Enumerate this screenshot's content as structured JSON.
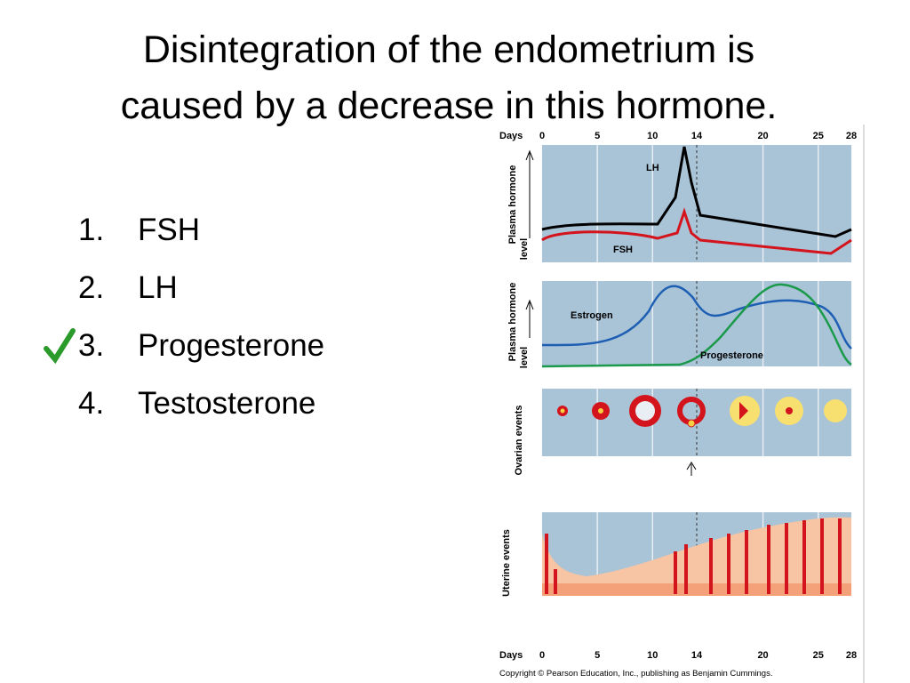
{
  "title": [
    "Disintegration of the endometrium is",
    "caused by a decrease in this hormone."
  ],
  "items": [
    {
      "number": "1.",
      "text": "FSH"
    },
    {
      "number": "2.",
      "text": "LH"
    },
    {
      "number": "3.",
      "text": "Progesterone",
      "checked": true
    },
    {
      "number": "4.",
      "text": "Testosterone"
    }
  ],
  "figure": {
    "day_label": "Days",
    "days": [
      0,
      5,
      10,
      14,
      20,
      25,
      28
    ],
    "days_max": 28,
    "panels": [
      {
        "label": [
          "Plasma hormone",
          "level"
        ],
        "curves": [
          "LH",
          "FSH"
        ]
      },
      {
        "label": [
          "Plasma hormone",
          "level"
        ],
        "curves": [
          "Estrogen",
          "Progesterone"
        ]
      },
      {
        "label": [
          "Ovarian events"
        ]
      },
      {
        "label": [
          "Uterine events"
        ]
      }
    ],
    "copyright": "Copyright © Pearson Education, Inc., publishing as Benjamin Cummings."
  }
}
